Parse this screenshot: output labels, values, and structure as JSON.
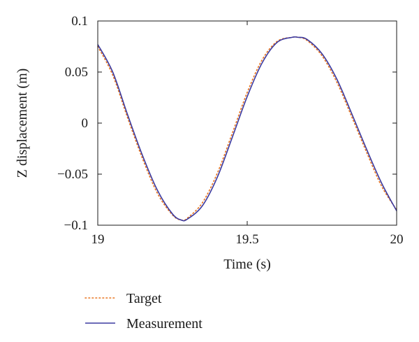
{
  "chart_data": {
    "type": "line",
    "xlabel": "Time (s)",
    "ylabel": "Z displacement (m)",
    "xlim": [
      19,
      20
    ],
    "ylim": [
      -0.1,
      0.1
    ],
    "x_ticks": [
      19,
      19.5,
      20
    ],
    "x_tick_labels": [
      "19",
      "19.5",
      "20"
    ],
    "y_ticks": [
      -0.1,
      -0.05,
      0,
      0.05,
      0.1
    ],
    "y_tick_labels": [
      "−0.1",
      "−0.05",
      "0",
      "0.05",
      "0.1"
    ],
    "grid": false,
    "legend_position": "below-left",
    "series": [
      {
        "name": "Target",
        "style": "dotted",
        "color": "#e8741e",
        "x": [
          19.0,
          19.05,
          19.1,
          19.15,
          19.2,
          19.25,
          19.28,
          19.3,
          19.35,
          19.4,
          19.45,
          19.5,
          19.55,
          19.6,
          19.65,
          19.67,
          19.7,
          19.75,
          19.8,
          19.85,
          19.9,
          19.95,
          20.0
        ],
        "y": [
          0.075,
          0.047,
          0.005,
          -0.035,
          -0.069,
          -0.09,
          -0.095,
          -0.093,
          -0.078,
          -0.049,
          -0.01,
          0.03,
          0.062,
          0.08,
          0.084,
          0.084,
          0.081,
          0.066,
          0.04,
          0.006,
          -0.029,
          -0.062,
          -0.085
        ]
      },
      {
        "name": "Measurement",
        "style": "solid",
        "color": "#3b3aa0",
        "x": [
          19.0,
          19.05,
          19.1,
          19.15,
          19.2,
          19.25,
          19.28,
          19.3,
          19.35,
          19.4,
          19.45,
          19.5,
          19.55,
          19.6,
          19.65,
          19.67,
          19.7,
          19.75,
          19.8,
          19.85,
          19.9,
          19.95,
          20.0
        ],
        "y": [
          0.077,
          0.05,
          0.008,
          -0.032,
          -0.066,
          -0.089,
          -0.095,
          -0.094,
          -0.081,
          -0.053,
          -0.014,
          0.026,
          0.059,
          0.079,
          0.084,
          0.084,
          0.082,
          0.068,
          0.043,
          0.009,
          -0.026,
          -0.059,
          -0.086
        ]
      }
    ]
  }
}
